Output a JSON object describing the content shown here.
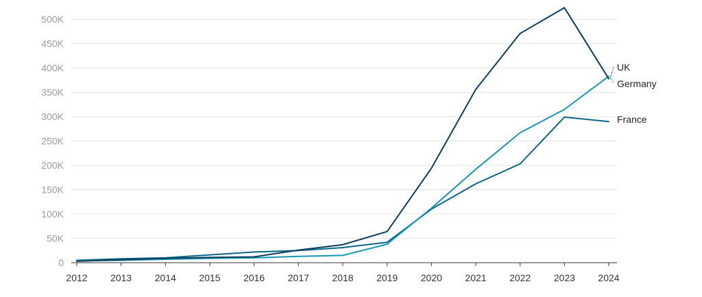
{
  "chart_data": {
    "type": "line",
    "title": "",
    "xlabel": "",
    "ylabel": "",
    "x": [
      "2012",
      "2013",
      "2014",
      "2015",
      "2016",
      "2017",
      "2018",
      "2019",
      "2020",
      "2021",
      "2022",
      "2023",
      "2024"
    ],
    "ylim": [
      0,
      520000
    ],
    "yticks": [
      0,
      50000,
      100000,
      150000,
      200000,
      250000,
      300000,
      350000,
      400000,
      450000,
      500000
    ],
    "ytick_labels": [
      "0",
      "50K",
      "100K",
      "150K",
      "200K",
      "250K",
      "300K",
      "350K",
      "400K",
      "450K",
      "500K"
    ],
    "grid": true,
    "legend": "inline-right",
    "series": [
      {
        "name": "UK",
        "color": "#0b3d5c",
        "values": [
          3000,
          6000,
          9000,
          11000,
          12000,
          26000,
          37000,
          64000,
          194000,
          356000,
          471000,
          524000,
          378000
        ]
      },
      {
        "name": "Germany",
        "color": "#1496b5",
        "values": [
          4000,
          5000,
          7000,
          9000,
          10000,
          13000,
          15000,
          38000,
          112000,
          192000,
          267000,
          315000,
          383000
        ]
      },
      {
        "name": "France",
        "color": "#0a6588",
        "values": [
          5000,
          8000,
          10000,
          16000,
          22000,
          25000,
          31000,
          42000,
          110000,
          162000,
          203000,
          299000,
          290000
        ]
      }
    ]
  }
}
